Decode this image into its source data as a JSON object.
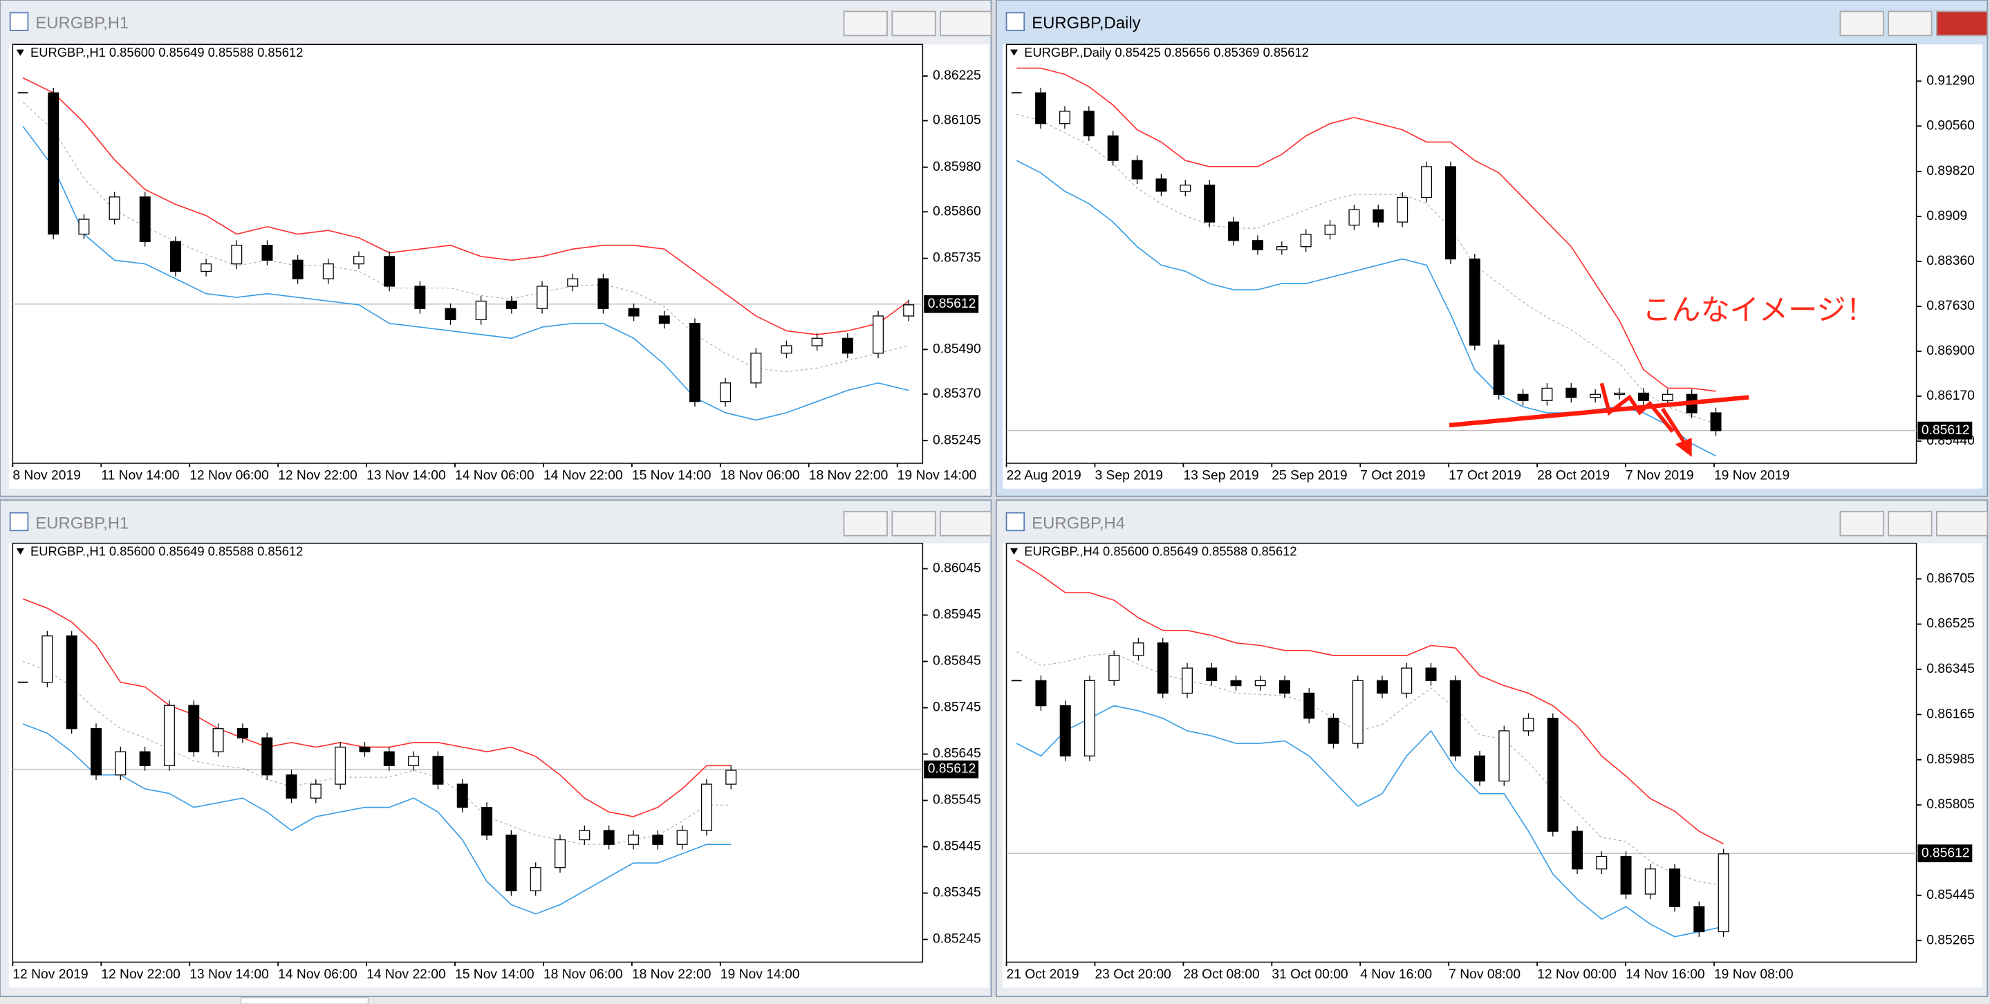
{
  "chart_data": [
    {
      "type": "candlestick",
      "window_title": "EURGBP,H1",
      "info": "EURGBP.,H1  0.85600 0.85649 0.85588 0.85612",
      "closes": [
        0.8618,
        0.858,
        0.8584,
        0.859,
        0.8578,
        0.857,
        0.8572,
        0.8577,
        0.8573,
        0.8568,
        0.8572,
        0.8574,
        0.8566,
        0.856,
        0.8557,
        0.8562,
        0.856,
        0.8566,
        0.8568,
        0.856,
        0.8558,
        0.8556,
        0.8535,
        0.854,
        0.8548,
        0.855,
        0.8552,
        0.8548,
        0.8558,
        0.8561
      ],
      "upper_band": [
        0.8622,
        0.8618,
        0.861,
        0.86,
        0.8592,
        0.8588,
        0.8585,
        0.858,
        0.8582,
        0.858,
        0.8581,
        0.8579,
        0.8575,
        0.8576,
        0.8577,
        0.8574,
        0.8573,
        0.8574,
        0.8576,
        0.8577,
        0.8577,
        0.8576,
        0.857,
        0.8564,
        0.8558,
        0.8554,
        0.8553,
        0.8554,
        0.8556,
        0.8562
      ],
      "lower_band": [
        0.8609,
        0.8598,
        0.858,
        0.8573,
        0.8572,
        0.8568,
        0.8564,
        0.8563,
        0.8564,
        0.8563,
        0.8562,
        0.8561,
        0.8556,
        0.8555,
        0.8554,
        0.8553,
        0.8552,
        0.8555,
        0.8556,
        0.8556,
        0.8552,
        0.8545,
        0.8536,
        0.8532,
        0.853,
        0.8532,
        0.8535,
        0.8538,
        0.854,
        0.8538
      ],
      "ylim": [
        0.85184,
        0.8631
      ],
      "yticks": [
        0.86225,
        0.86105,
        {
          "value": 0.8598,
          "label": "0.85980"
        },
        {
          "value": 0.8586,
          "label": "0.85860"
        },
        0.85735,
        {
          "value": 0.8549,
          "label": "0.85490"
        },
        {
          "value": 0.8537,
          "label": "0.85370"
        },
        0.85245
      ],
      "x_labels": [
        "8 Nov 2019",
        "11 Nov 14:00",
        "12 Nov 06:00",
        "12 Nov 22:00",
        "13 Nov 14:00",
        "14 Nov 06:00",
        "14 Nov 22:00",
        "15 Nov 14:00",
        "18 Nov 06:00",
        "18 Nov 22:00",
        "19 Nov 14:00"
      ],
      "current_price": 0.85612
    },
    {
      "type": "candlestick",
      "window_title": "EURGBP,Daily",
      "info": "EURGBP.,Daily  0.85425 0.85656 0.85369 0.85612",
      "closes": [
        0.911,
        0.906,
        0.908,
        0.904,
        0.9,
        0.897,
        0.895,
        0.896,
        0.89,
        0.887,
        0.8855,
        0.886,
        0.888,
        0.8895,
        0.892,
        0.89,
        0.894,
        0.899,
        0.884,
        0.87,
        0.862,
        0.861,
        0.863,
        0.8615,
        0.862,
        0.8622,
        0.861,
        0.862,
        0.859,
        0.8561
      ],
      "upper_band": [
        0.915,
        0.915,
        0.914,
        0.912,
        0.909,
        0.905,
        0.903,
        0.9,
        0.899,
        0.899,
        0.899,
        0.901,
        0.904,
        0.906,
        0.907,
        0.906,
        0.905,
        0.903,
        0.903,
        0.9,
        0.898,
        0.894,
        0.89,
        0.886,
        0.88,
        0.874,
        0.866,
        0.863,
        0.863,
        0.8625
      ],
      "lower_band": [
        0.9,
        0.898,
        0.895,
        0.893,
        0.89,
        0.886,
        0.883,
        0.882,
        0.88,
        0.879,
        0.879,
        0.88,
        0.88,
        0.881,
        0.882,
        0.883,
        0.884,
        0.883,
        0.875,
        0.866,
        0.862,
        0.86,
        0.859,
        0.859,
        0.8595,
        0.86,
        0.859,
        0.857,
        0.854,
        0.852
      ],
      "ylim": [
        0.8508,
        0.91886
      ],
      "yticks": [
        {
          "value": 0.9129,
          "label": "0.91290"
        },
        {
          "value": 0.9056,
          "label": "0.90560"
        },
        {
          "value": 0.8982,
          "label": "0.89820"
        },
        0.8909,
        {
          "value": 0.8836,
          "label": "0.88360"
        },
        {
          "value": 0.8763,
          "label": "0.87630"
        },
        {
          "value": 0.869,
          "label": "0.86900"
        },
        {
          "value": 0.8617,
          "label": "0.86170"
        },
        {
          "value": 0.8544,
          "label": "0.85440"
        }
      ],
      "x_labels": [
        "22 Aug 2019",
        "3 Sep 2019",
        "13 Sep 2019",
        "25 Sep 2019",
        "7 Oct 2019",
        "17 Oct 2019",
        "28 Oct 2019",
        "7 Nov 2019",
        "19 Nov 2019"
      ],
      "current_price": 0.85612,
      "annotation": "こんなイメージ！"
    },
    {
      "type": "candlestick",
      "window_title": "EURGBP,H1",
      "info": "EURGBP.,H1  0.85600 0.85649 0.85588 0.85612",
      "closes": [
        0.858,
        0.859,
        0.857,
        0.856,
        0.8565,
        0.8562,
        0.8575,
        0.8565,
        0.857,
        0.8568,
        0.856,
        0.8555,
        0.8558,
        0.8566,
        0.8565,
        0.8562,
        0.8564,
        0.8558,
        0.8553,
        0.8547,
        0.8535,
        0.854,
        0.8546,
        0.8548,
        0.8545,
        0.8547,
        0.8545,
        0.8548,
        0.8558,
        0.8561
      ],
      "upper_band": [
        0.8598,
        0.8596,
        0.8593,
        0.8588,
        0.858,
        0.8579,
        0.8575,
        0.8573,
        0.857,
        0.8568,
        0.8566,
        0.8567,
        0.8566,
        0.8567,
        0.8566,
        0.8566,
        0.8567,
        0.8567,
        0.8566,
        0.8565,
        0.8566,
        0.8564,
        0.856,
        0.8555,
        0.8552,
        0.8551,
        0.8553,
        0.8557,
        0.8562,
        0.8562
      ],
      "lower_band": [
        0.8571,
        0.8569,
        0.8565,
        0.856,
        0.856,
        0.8557,
        0.8556,
        0.8553,
        0.8554,
        0.8555,
        0.8552,
        0.8548,
        0.8551,
        0.8552,
        0.8553,
        0.8553,
        0.8555,
        0.8552,
        0.8546,
        0.8537,
        0.8532,
        0.853,
        0.8532,
        0.8535,
        0.8538,
        0.8541,
        0.8541,
        0.8543,
        0.8545,
        0.8545
      ],
      "ylim": [
        0.85196,
        0.861
      ],
      "yticks": [
        0.86045,
        0.85945,
        0.85845,
        0.85745,
        0.85645,
        0.85545,
        0.85445,
        0.85345,
        0.85245
      ],
      "x_labels": [
        "12 Nov 2019",
        "12 Nov 22:00",
        "13 Nov 14:00",
        "14 Nov 06:00",
        "14 Nov 22:00",
        "15 Nov 14:00",
        "18 Nov 06:00",
        "18 Nov 22:00",
        "19 Nov 14:00"
      ],
      "current_price": 0.85612
    },
    {
      "type": "candlestick",
      "window_title": "EURGBP,H4",
      "info": "EURGBP.,H4  0.85600 0.85649 0.85588 0.85612",
      "closes": [
        0.863,
        0.862,
        0.86,
        0.863,
        0.864,
        0.8645,
        0.8625,
        0.8635,
        0.863,
        0.8628,
        0.863,
        0.8625,
        0.8615,
        0.8605,
        0.863,
        0.8625,
        0.8635,
        0.863,
        0.86,
        0.859,
        0.861,
        0.8615,
        0.857,
        0.8555,
        0.856,
        0.8545,
        0.8555,
        0.854,
        0.853,
        0.8561
      ],
      "upper_band": [
        0.8678,
        0.8672,
        0.8665,
        0.8665,
        0.8662,
        0.8655,
        0.865,
        0.865,
        0.8648,
        0.8645,
        0.8644,
        0.8642,
        0.8642,
        0.864,
        0.864,
        0.864,
        0.864,
        0.8644,
        0.8643,
        0.8632,
        0.8628,
        0.8625,
        0.862,
        0.8612,
        0.86,
        0.8592,
        0.8583,
        0.8578,
        0.857,
        0.8565
      ],
      "lower_band": [
        0.8605,
        0.86,
        0.861,
        0.8615,
        0.862,
        0.8618,
        0.8615,
        0.861,
        0.8608,
        0.8605,
        0.8605,
        0.8606,
        0.86,
        0.859,
        0.858,
        0.8585,
        0.86,
        0.861,
        0.8595,
        0.8585,
        0.8585,
        0.857,
        0.8553,
        0.8543,
        0.8535,
        0.854,
        0.8533,
        0.8528,
        0.853,
        0.8532
      ],
      "ylim": [
        0.85179,
        0.86847
      ],
      "yticks": [
        0.86705,
        0.86525,
        0.86345,
        0.86165,
        0.85985,
        0.85805,
        0.85445,
        0.85265
      ],
      "x_labels": [
        "21 Oct 2019",
        "23 Oct 20:00",
        "28 Oct 08:00",
        "31 Oct 00:00",
        "4 Nov 16:00",
        "7 Nov 08:00",
        "12 Nov 00:00",
        "14 Nov 16:00",
        "19 Nov 08:00"
      ],
      "current_price": 0.85612
    }
  ]
}
